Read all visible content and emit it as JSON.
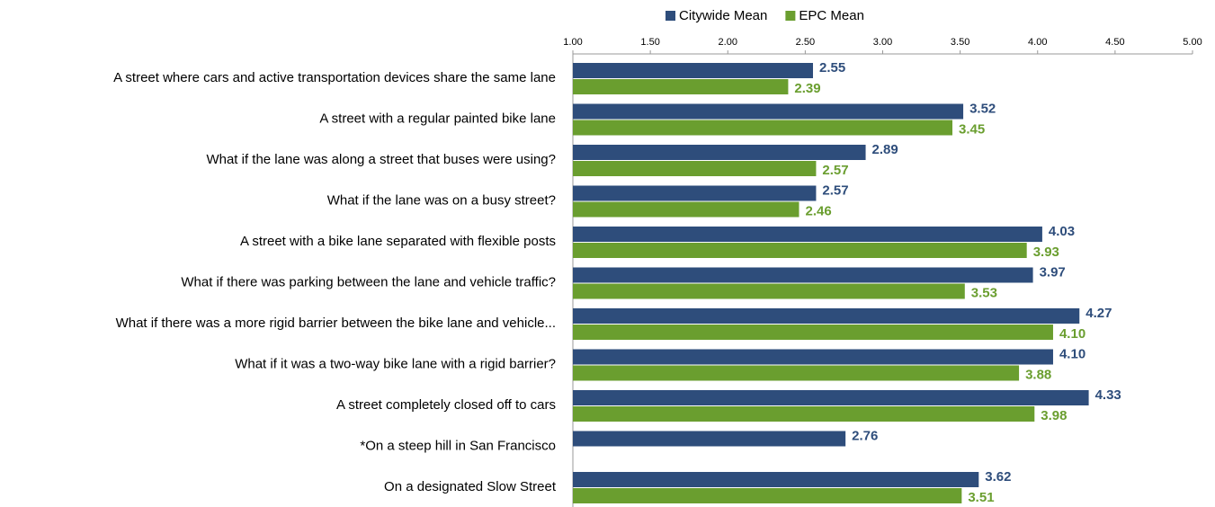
{
  "chart_data": {
    "type": "bar",
    "orientation": "horizontal",
    "categories": [
      "A street where cars and active transportation devices share the same lane",
      "A street with a regular painted bike lane",
      "What if the lane was along a street that buses were using?",
      "What if the lane was on a busy street?",
      "A street with a bike lane separated with flexible posts",
      "What if there was parking between the lane and vehicle traffic?",
      "What if there was a more rigid barrier between the bike lane and vehicle...",
      "What if it was a two-way bike lane with a rigid barrier?",
      "A street completely closed off to cars",
      "*On a steep hill in San Francisco",
      "On a designated Slow Street"
    ],
    "series": [
      {
        "name": "Citywide Mean",
        "color": "#2e4d7b",
        "values": [
          2.55,
          3.52,
          2.89,
          2.57,
          4.03,
          3.97,
          4.27,
          4.1,
          4.33,
          2.76,
          3.62
        ],
        "value_labels": [
          "2.55",
          "3.52",
          "2.89",
          "2.57",
          "4.03",
          "3.97",
          "4.27",
          "4.10",
          "4.33",
          "2.76",
          "3.62"
        ]
      },
      {
        "name": "EPC Mean",
        "color": "#6a9e2f",
        "values": [
          2.39,
          3.45,
          2.57,
          2.46,
          3.93,
          3.53,
          4.1,
          3.88,
          3.98,
          null,
          3.51
        ],
        "value_labels": [
          "2.39",
          "3.45",
          "2.57",
          "2.46",
          "3.93",
          "3.53",
          "4.10",
          "3.88",
          "3.98",
          null,
          "3.51"
        ]
      }
    ],
    "xlim": [
      1,
      5
    ],
    "xticks": [
      {
        "value": 1,
        "label": "1.00"
      },
      {
        "value": 1.5,
        "label": "1.50"
      },
      {
        "value": 2,
        "label": "2.00"
      },
      {
        "value": 2.5,
        "label": "2.50"
      },
      {
        "value": 3,
        "label": "3.00"
      },
      {
        "value": 3.5,
        "label": "3.50"
      },
      {
        "value": 4,
        "label": "4.00"
      },
      {
        "value": 4.5,
        "label": "4.50"
      },
      {
        "value": 5,
        "label": "5.00"
      }
    ],
    "legend": "top"
  }
}
